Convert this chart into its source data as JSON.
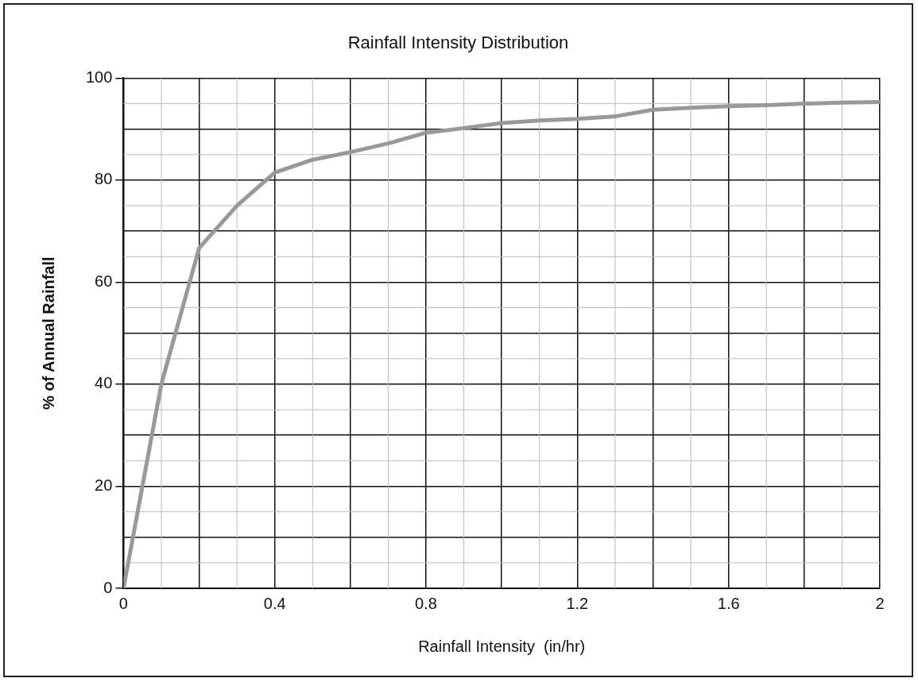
{
  "chart_data": {
    "type": "line",
    "title": "Rainfall Intensity Distribution",
    "xlabel": "Rainfall Intensity  (in/hr)",
    "ylabel": "% of Annual Rainfall",
    "x": [
      0,
      0.1,
      0.2,
      0.3,
      0.4,
      0.5,
      0.6,
      0.7,
      0.8,
      0.9,
      1.0,
      1.1,
      1.2,
      1.3,
      1.4,
      1.5,
      1.6,
      1.7,
      1.8,
      1.9,
      2.0
    ],
    "series": [
      {
        "color": "#999999",
        "values": [
          0,
          40,
          66.7,
          75,
          81.5,
          84,
          85.5,
          87.2,
          89.3,
          90.2,
          91.2,
          91.7,
          92,
          92.5,
          93.8,
          94.2,
          94.5,
          94.7,
          95,
          95.2,
          95.3
        ]
      }
    ],
    "xlim": [
      0,
      2
    ],
    "ylim": [
      0,
      100
    ],
    "xticks": [
      0,
      {
        "value": 0.2,
        "label": null
      },
      0.4,
      {
        "value": 0.6,
        "label": null
      },
      0.8,
      {
        "value": 1.0,
        "label": null
      },
      1.2,
      {
        "value": 1.4,
        "label": null
      },
      1.6,
      {
        "value": 1.8,
        "label": null
      },
      2
    ],
    "yticks": [
      0,
      {
        "value": 10,
        "label": null
      },
      20,
      {
        "value": 30,
        "label": null
      },
      40,
      {
        "value": 50,
        "label": null
      },
      60,
      {
        "value": 70,
        "label": null
      },
      80,
      {
        "value": 90,
        "label": null
      },
      100
    ],
    "grid": true,
    "marker": "none",
    "line_style": "solid",
    "legend": false
  }
}
